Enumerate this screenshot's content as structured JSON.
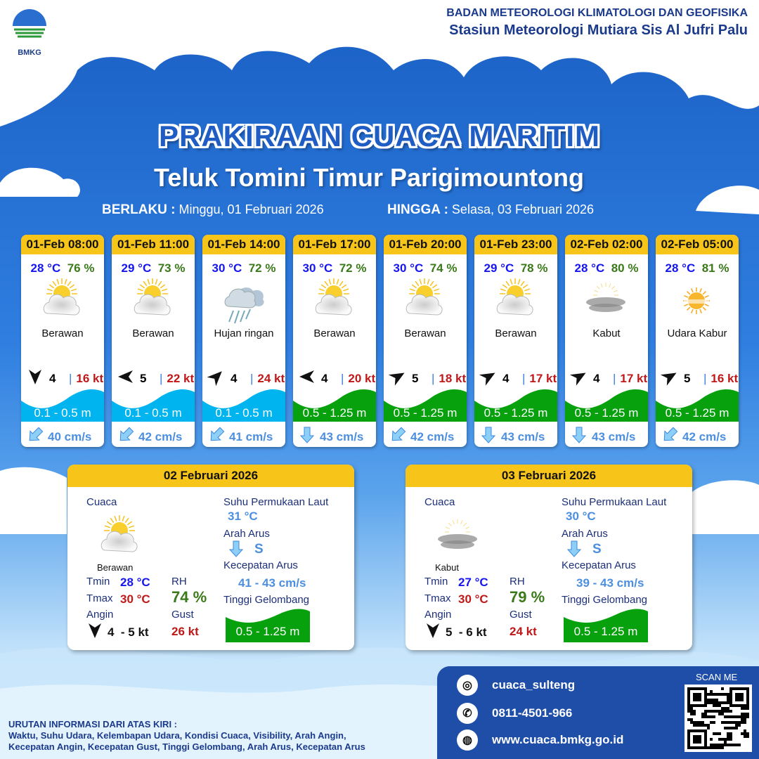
{
  "header": {
    "logo_text": "BMKG",
    "org": "BADAN METEOROLOGI KLIMATOLOGI DAN GEOFISIKA",
    "station": "Stasiun Meteorologi Mutiara Sis Al Jufri Palu"
  },
  "title": "PRAKIRAAN CUACA MARITIM",
  "area": "Teluk Tomini Timur Parigimountong",
  "validity": {
    "from_label": "BERLAKU :",
    "from": "Minggu, 01 Februari 2026",
    "to_label": "HINGGA :",
    "to": "Selasa, 03 Februari 2026"
  },
  "forecasts": [
    {
      "time": "01-Feb 08:00",
      "temp": "28 °C",
      "rh": "76 %",
      "icon": "cloudy-icon",
      "weather": "Berawan",
      "wind_dir_deg": 180,
      "wind": "4",
      "gust": "16 kt",
      "wave": "0.1 - 0.5 m",
      "wave_color": "#00b4f0",
      "current_icon": "arrow-sw",
      "current_dir_deg": 225,
      "current": "40 cm/s"
    },
    {
      "time": "01-Feb 11:00",
      "temp": "29 °C",
      "rh": "73 %",
      "icon": "cloudy-icon",
      "weather": "Berawan",
      "wind_dir_deg": 270,
      "wind": "5",
      "gust": "22 kt",
      "wave": "0.1 - 0.5 m",
      "wave_color": "#00b4f0",
      "current_dir_deg": 225,
      "current": "42 cm/s"
    },
    {
      "time": "01-Feb 14:00",
      "temp": "30 °C",
      "rh": "72 %",
      "icon": "light-rain-icon",
      "weather": "Hujan ringan",
      "wind_dir_deg": 45,
      "wind": "4",
      "gust": "24 kt",
      "wave": "0.1 - 0.5 m",
      "wave_color": "#00b4f0",
      "current_dir_deg": 225,
      "current": "41 cm/s"
    },
    {
      "time": "01-Feb 17:00",
      "temp": "30 °C",
      "rh": "72 %",
      "icon": "cloudy-icon",
      "weather": "Berawan",
      "wind_dir_deg": 270,
      "wind": "4",
      "gust": "20 kt",
      "wave": "0.5 - 1.25 m",
      "wave_color": "#08a10e",
      "current_dir_deg": 180,
      "current": "43 cm/s"
    },
    {
      "time": "01-Feb 20:00",
      "temp": "30 °C",
      "rh": "74 %",
      "icon": "cloudy-icon",
      "weather": "Berawan",
      "wind_dir_deg": 60,
      "wind": "5",
      "gust": "18 kt",
      "wave": "0.5 - 1.25 m",
      "wave_color": "#08a10e",
      "current_dir_deg": 225,
      "current": "42 cm/s"
    },
    {
      "time": "01-Feb 23:00",
      "temp": "29 °C",
      "rh": "78 %",
      "icon": "cloudy-icon",
      "weather": "Berawan",
      "wind_dir_deg": 60,
      "wind": "4",
      "gust": "17 kt",
      "wave": "0.5 - 1.25 m",
      "wave_color": "#08a10e",
      "current_dir_deg": 180,
      "current": "43 cm/s"
    },
    {
      "time": "02-Feb 02:00",
      "temp": "28 °C",
      "rh": "80 %",
      "icon": "fog-icon",
      "weather": "Kabut",
      "wind_dir_deg": 60,
      "wind": "4",
      "gust": "17 kt",
      "wave": "0.5 - 1.25 m",
      "wave_color": "#08a10e",
      "current_dir_deg": 180,
      "current": "43 cm/s"
    },
    {
      "time": "02-Feb 05:00",
      "temp": "28 °C",
      "rh": "81 %",
      "icon": "haze-icon",
      "weather": "Udara Kabur",
      "wind_dir_deg": 60,
      "wind": "5",
      "gust": "16 kt",
      "wave": "0.5 - 1.25 m",
      "wave_color": "#08a10e",
      "current_dir_deg": 225,
      "current": "42 cm/s"
    }
  ],
  "daily": [
    {
      "date": "02 Februari 2026",
      "cuaca_label": "Cuaca",
      "icon": "cloudy-icon",
      "weather": "Berawan",
      "tmin_label": "Tmin",
      "tmin": "28 °C",
      "tmax_label": "Tmax",
      "tmax": "30 °C",
      "rh_label": "RH",
      "rh": "74 %",
      "wind_label": "Angin",
      "wind_dir_deg": 180,
      "wind": "4  - 5 kt",
      "gust_label": "Gust",
      "gust": "26 kt",
      "sst_label": "Suhu Permukaan Laut",
      "sst": "31 °C",
      "current_dir_label": "Arah Arus",
      "current_dir": "S",
      "current_speed_label": "Kecepatan Arus",
      "current_speed": "41 - 43 cm/s",
      "wave_label": "Tinggi Gelombang",
      "wave": "0.5 - 1.25 m"
    },
    {
      "date": "03 Februari 2026",
      "cuaca_label": "Cuaca",
      "icon": "fog-icon",
      "weather": "Kabut",
      "tmin_label": "Tmin",
      "tmin": "27 °C",
      "tmax_label": "Tmax",
      "tmax": "30 °C",
      "rh_label": "RH",
      "rh": "79 %",
      "wind_label": "Angin",
      "wind_dir_deg": 180,
      "wind": "5  - 6 kt",
      "gust_label": "Gust",
      "gust": "24 kt",
      "sst_label": "Suhu Permukaan Laut",
      "sst": "30 °C",
      "current_dir_label": "Arah Arus",
      "current_dir": "S",
      "current_speed_label": "Kecepatan Arus",
      "current_speed": "39 - 43 cm/s",
      "wave_label": "Tinggi Gelombang",
      "wave": "0.5 - 1.25 m"
    }
  ],
  "footer": {
    "instagram": "cuaca_sulteng",
    "phone": "0811-4501-966",
    "website": "www.cuaca.bmkg.go.id",
    "scan": "SCAN ME"
  },
  "notes": {
    "title": "URUTAN INFORMASI DARI ATAS KIRI :",
    "line1": "Waktu, Suhu Udara, Kelembapan Udara, Kondisi Cuaca, Visibility, Arah Angin,",
    "line2": "Kecepatan Angin, Kecepatan Gust, Tinggi Gelombang, Arah Arus, Kecepatan Arus"
  }
}
